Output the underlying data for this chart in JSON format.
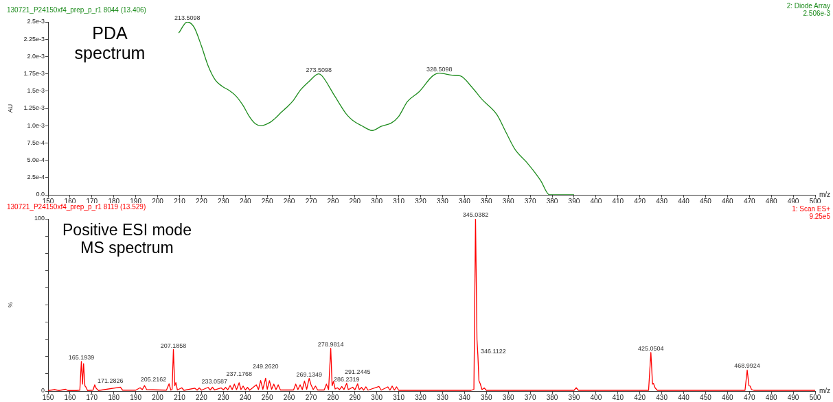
{
  "chart_data": [
    {
      "type": "line",
      "title": "PDA spectrum",
      "subtitle": "130721_P24150xf4_prep_p_r1 8044 (13.406)",
      "xlabel": "m/z",
      "ylabel": "AU",
      "annotations": [
        "2: Diode Array",
        "2.506e-3",
        {
          "text": "213.5098",
          "x": 213.5098,
          "y": 0.0025
        },
        {
          "text": "273.5098",
          "x": 273.5098,
          "y": 0.00175
        },
        {
          "text": "328.5098",
          "x": 328.5098,
          "y": 0.00176
        }
      ],
      "x": [
        209.6,
        213.5098,
        216.7,
        220,
        223.1,
        226.3,
        229.4,
        232.6,
        235.7,
        238.8,
        241.9,
        244.5,
        247.2,
        251.4,
        253.4,
        256.6,
        258.7,
        261.8,
        265,
        269.1,
        273.5098,
        275,
        280.6,
        285.8,
        288.9,
        293.1,
        297.9,
        302,
        306.7,
        309.9,
        314,
        319.3,
        325.5,
        328.5098,
        334.4,
        338.1,
        343.3,
        348,
        354.8,
        359,
        363.2,
        368.4,
        374.7,
        378.8,
        390
      ],
      "series": [
        {
          "color": "#1e8c1e",
          "values": [
            0.00234,
            0.0025,
            0.00242,
            0.00215,
            0.00186,
            0.00166,
            0.00157,
            0.00151,
            0.00143,
            0.0013,
            0.00113,
            0.00103,
            0.001,
            0.00105,
            0.0011,
            0.0012,
            0.00126,
            0.00136,
            0.00151,
            0.00164,
            0.00175,
            0.00172,
            0.00144,
            0.00118,
            0.00108,
            0.001,
            0.00093,
            0.00099,
            0.00104,
            0.00113,
            0.00135,
            0.00149,
            0.00172,
            0.00176,
            0.00173,
            0.00172,
            0.00156,
            0.00138,
            0.00116,
            0.0009,
            0.00065,
            0.00047,
            0.00021,
            0,
            0
          ]
        }
      ],
      "xlim": [
        150,
        500
      ],
      "xticks": [
        150,
        160,
        170,
        180,
        190,
        200,
        210,
        220,
        230,
        240,
        250,
        260,
        270,
        280,
        290,
        300,
        310,
        320,
        330,
        340,
        350,
        360,
        370,
        380,
        390,
        400,
        410,
        420,
        430,
        440,
        450,
        460,
        470,
        480,
        490,
        500
      ],
      "ylim": [
        0,
        0.0025
      ],
      "yticks": [
        {
          "value": 0,
          "label": "0.0"
        },
        {
          "value": 0.00025,
          "label": "2.5e-4"
        },
        {
          "value": 0.0005,
          "label": "5.0e-4"
        },
        {
          "value": 0.00075,
          "label": "7.5e-4"
        },
        {
          "value": 0.001,
          "label": "1.0e-3"
        },
        {
          "value": 0.00125,
          "label": "1.25e-3"
        },
        {
          "value": 0.0015,
          "label": "1.5e-3"
        },
        {
          "value": 0.00175,
          "label": "1.75e-3"
        },
        {
          "value": 0.002,
          "label": "2.0e-3"
        },
        {
          "value": 0.00225,
          "label": "2.25e-3"
        },
        {
          "value": 0.0025,
          "label": "2.5e-3"
        }
      ]
    },
    {
      "type": "line",
      "title": "Positive ESI mode MS spectrum",
      "subtitle": "130721_P24150xf4_prep_p_r1 8119 (13.529)",
      "xlabel": "m/z",
      "ylabel": "%",
      "annotations": [
        "1: Scan ES+",
        "9.25e5",
        {
          "text": "165.1939",
          "x": 165.1939,
          "y": 17.2
        },
        {
          "text": "171.2826",
          "x": 171.2826,
          "y": 3.6
        },
        {
          "text": "205.2162",
          "x": 205.2162,
          "y": 4.2
        },
        {
          "text": "207.1858",
          "x": 207.1858,
          "y": 24.1
        },
        {
          "text": "233.0587",
          "x": 233.0587,
          "y": 3.2
        },
        {
          "text": "237.1768",
          "x": 237.1768,
          "y": 4.8
        },
        {
          "text": "249.2620",
          "x": 249.262,
          "y": 7.4
        },
        {
          "text": "269.1349",
          "x": 269.1349,
          "y": 7.3
        },
        {
          "text": "278.9814",
          "x": 278.9814,
          "y": 24.8
        },
        {
          "text": "286.2319",
          "x": 286.2319,
          "y": 4.5
        },
        {
          "text": "291.2445",
          "x": 291.2445,
          "y": 4.2
        },
        {
          "text": "345.0382",
          "x": 345.0382,
          "y": 100
        },
        {
          "text": "346.1122",
          "x": 346.1122,
          "y": 20.8
        },
        {
          "text": "425.0504",
          "x": 425.0504,
          "y": 22.4
        },
        {
          "text": "468.9924",
          "x": 468.9924,
          "y": 12.2
        }
      ],
      "x": [
        150,
        153,
        155,
        158,
        159,
        163,
        164.5,
        165.1939,
        165.7,
        166.2,
        166.8,
        167.3,
        168,
        170.5,
        171.2826,
        172,
        173,
        183,
        184,
        190,
        192,
        193,
        194,
        195,
        204,
        205.2162,
        206,
        206.6,
        207.1858,
        207.8,
        208.3,
        209,
        211,
        212,
        217,
        218,
        219,
        220,
        223,
        224,
        225,
        226,
        229,
        230,
        231,
        232,
        233.0587,
        234,
        235,
        236,
        237.1768,
        238,
        239,
        240,
        241,
        242,
        245,
        246,
        247,
        248,
        249.262,
        250,
        251,
        252,
        253,
        254,
        255,
        256,
        262,
        263,
        264,
        265,
        266,
        267,
        268,
        269.1349,
        270,
        271,
        272,
        273,
        276,
        277,
        278,
        278.9814,
        279.6,
        280.2,
        281,
        282,
        283,
        284,
        285,
        286.2319,
        287,
        289,
        290,
        291.2445,
        292,
        293,
        294,
        295,
        296,
        301,
        302,
        305,
        306,
        307,
        308,
        309,
        310,
        343,
        344.3,
        345.0382,
        345.7,
        346.1122,
        346.6,
        347.2,
        348,
        349,
        350,
        390,
        391,
        392,
        424,
        425.0504,
        425.8,
        426.2,
        427,
        428,
        468,
        468.9924,
        469.8,
        470.3,
        471,
        472,
        500
      ],
      "series": [
        {
          "color": "#ff0000",
          "values": [
            0.3,
            0.8,
            0.3,
            1.0,
            0.3,
            0.3,
            0.5,
            17.2,
            4,
            15.9,
            3,
            2.2,
            0.3,
            0.5,
            3.6,
            1.5,
            0.3,
            2.2,
            0.5,
            0.5,
            1.9,
            0.8,
            3.2,
            0.8,
            0.5,
            4.2,
            0.5,
            1,
            24.1,
            3,
            4.9,
            0.6,
            1.9,
            0.4,
            1.6,
            0.5,
            1.8,
            0.5,
            2.1,
            0.6,
            2.2,
            0.6,
            1.8,
            0.7,
            2.1,
            0.7,
            3.2,
            0.8,
            4.0,
            0.8,
            4.8,
            0.8,
            2.9,
            0.6,
            2.1,
            0.5,
            3.6,
            0.8,
            6.1,
            1,
            7.4,
            1,
            6.0,
            1,
            4.0,
            0.8,
            3.6,
            0.6,
            0.6,
            4.0,
            0.8,
            3.6,
            0.8,
            5.8,
            1,
            7.3,
            3.6,
            0.8,
            2.9,
            0.6,
            0.6,
            4.0,
            0.8,
            24.8,
            3,
            5.6,
            1.2,
            1.9,
            0.8,
            2.6,
            0.8,
            4.5,
            0.8,
            2.2,
            0.7,
            4.2,
            0.8,
            2.1,
            0.5,
            2.4,
            0.5,
            2.6,
            0.5,
            2.4,
            0.5,
            2.9,
            0.5,
            2.4,
            0.4,
            0.4,
            1,
            100,
            30,
            20.8,
            6,
            4.2,
            0.8,
            1.8,
            0.4,
            0.4,
            1.9,
            0.4,
            0.4,
            22.4,
            4,
            4.5,
            1.8,
            0.4,
            0.4,
            12.2,
            3,
            2.9,
            0.8,
            0.4,
            0.4
          ]
        }
      ],
      "xlim": [
        150,
        500
      ],
      "xticks": [
        150,
        160,
        170,
        180,
        190,
        200,
        210,
        220,
        230,
        240,
        250,
        260,
        270,
        280,
        290,
        300,
        310,
        320,
        330,
        340,
        350,
        360,
        370,
        380,
        390,
        400,
        410,
        420,
        430,
        440,
        450,
        460,
        470,
        480,
        490,
        500
      ],
      "ylim": [
        0,
        100
      ],
      "yticks": [
        0,
        {
          "value": 10,
          "label": null
        },
        {
          "value": 20,
          "label": null
        },
        {
          "value": 30,
          "label": null
        },
        {
          "value": 40,
          "label": null
        },
        {
          "value": 50,
          "label": null
        },
        {
          "value": 60,
          "label": null
        },
        {
          "value": 70,
          "label": null
        },
        {
          "value": 80,
          "label": null
        },
        {
          "value": 90,
          "label": null
        },
        100
      ]
    }
  ]
}
